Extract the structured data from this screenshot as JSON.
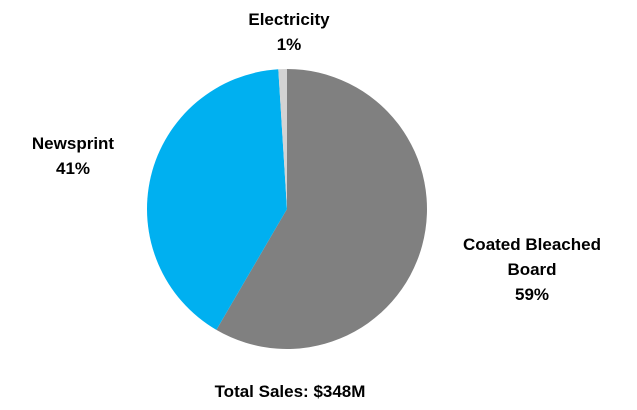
{
  "chart_data": {
    "type": "pie",
    "slices": [
      {
        "name": "Coated Bleached Board",
        "name_lines": [
          "Coated Bleached",
          "Board"
        ],
        "value": 59,
        "value_label": "59%",
        "color": "#808080"
      },
      {
        "name": "Newsprint",
        "name_lines": [
          "Newsprint"
        ],
        "value": 41,
        "value_label": "41%",
        "color": "#00B0F0"
      },
      {
        "name": "Electricity",
        "name_lines": [
          "Electricity"
        ],
        "value": 1,
        "value_label": "1%",
        "color": "#D3D3D3"
      }
    ],
    "caption": "Total Sales: $348M"
  }
}
